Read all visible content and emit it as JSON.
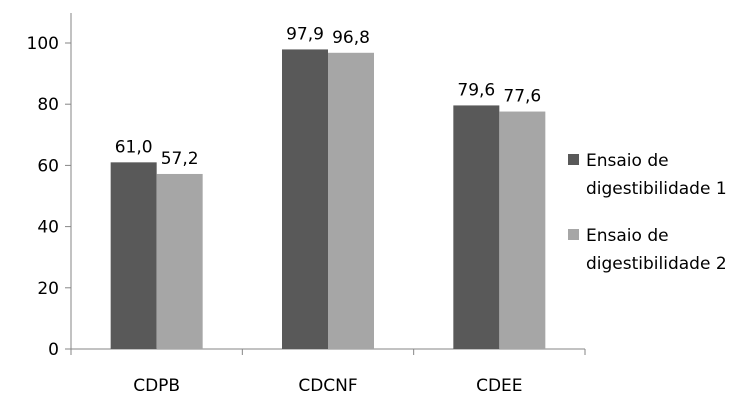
{
  "chart_data": {
    "type": "bar",
    "categories": [
      "CDPB",
      "CDCNF",
      "CDEE"
    ],
    "series": [
      {
        "name_lines": [
          "Ensaio de",
          "digestibilidade 1"
        ],
        "values": [
          61.0,
          97.9,
          79.6
        ],
        "labels": [
          "61,0",
          "97,9",
          "79,6"
        ],
        "color": "#595959"
      },
      {
        "name_lines": [
          "Ensaio de",
          "digestibilidade 2"
        ],
        "values": [
          57.2,
          96.8,
          77.6
        ],
        "labels": [
          "57,2",
          "96,8",
          "77,6"
        ],
        "color": "#a6a6a6"
      }
    ],
    "y_ticks": [
      "0",
      "20",
      "40",
      "60",
      "80",
      "100"
    ],
    "ylim": [
      0,
      100
    ],
    "grid": false,
    "legend_position": "right"
  }
}
